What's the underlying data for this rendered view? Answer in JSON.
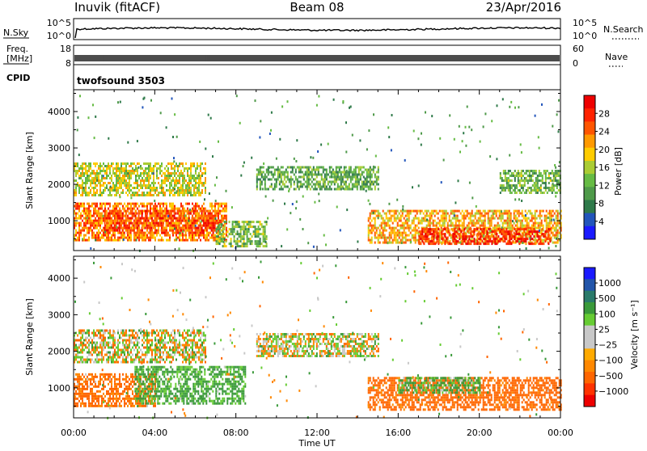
{
  "header": {
    "station": "Inuvik (fitACF)",
    "beam": "Beam 08",
    "date": "23/Apr/2016"
  },
  "noise_panel": {
    "left_label": "N.Sky",
    "right_label": "N.Search",
    "left_ticks": [
      "10^5",
      "10^0"
    ],
    "right_ticks": [
      "10^5",
      "10^0"
    ]
  },
  "freq_panel": {
    "left_label_line1": "Freq.",
    "left_label_line2": "[MHz]",
    "right_label": "Nave",
    "left_ticks": [
      "18",
      "8"
    ],
    "right_ticks": [
      "60",
      "0"
    ]
  },
  "cpid": {
    "label": "CPID",
    "value": "twofsound 3503"
  },
  "colors": {
    "power_scale": [
      "#1a1aff",
      "#2255bb",
      "#2f7a4a",
      "#4f9a4a",
      "#66bb44",
      "#aacc33",
      "#ffcc00",
      "#ff9900",
      "#ff5500",
      "#ff2200",
      "#ee0000"
    ],
    "velocity_scale": [
      "#ee0000",
      "#ff3300",
      "#ff6600",
      "#ff8800",
      "#ffaa00",
      "#c8c8c8",
      "#c8c8c8",
      "#66cc33",
      "#3a9a3a",
      "#2a7a6a",
      "#2255aa",
      "#1a1aff"
    ]
  },
  "chart_data": [
    {
      "type": "heatmap",
      "title": "",
      "xlabel": "",
      "ylabel": "Slant Range [km]",
      "xlim": [
        "00:00",
        "24:00"
      ],
      "ylim": [
        180,
        4600
      ],
      "y_ticks": [
        "1000",
        "2000",
        "3000",
        "4000"
      ],
      "colorbar": {
        "label": "Power [dB]",
        "range": [
          0,
          32
        ],
        "tick_labels": [
          "4",
          "8",
          "12",
          "16",
          "20",
          "24",
          "28"
        ]
      },
      "echo_regions": [
        {
          "t_start": 0.0,
          "t_end": 6.5,
          "r_min": 1700,
          "r_max": 2600,
          "level": 17
        },
        {
          "t_start": 0.0,
          "t_end": 7.5,
          "r_min": 500,
          "r_max": 1500,
          "level": 24
        },
        {
          "t_start": 1.5,
          "t_end": 7.0,
          "r_min": 700,
          "r_max": 1300,
          "level": 27
        },
        {
          "t_start": 7.0,
          "t_end": 9.5,
          "r_min": 300,
          "r_max": 1000,
          "level": 13
        },
        {
          "t_start": 9.0,
          "t_end": 15.0,
          "r_min": 1900,
          "r_max": 2500,
          "level": 11
        },
        {
          "t_start": 14.5,
          "t_end": 24.0,
          "r_min": 400,
          "r_max": 1300,
          "level": 21
        },
        {
          "t_start": 17.0,
          "t_end": 23.5,
          "r_min": 400,
          "r_max": 800,
          "level": 29
        },
        {
          "t_start": 21.0,
          "t_end": 24.0,
          "r_min": 1800,
          "r_max": 2400,
          "level": 12
        }
      ]
    },
    {
      "type": "heatmap",
      "title": "",
      "xlabel": "Time UT",
      "ylabel": "Slant Range [km]",
      "xlim": [
        "00:00",
        "24:00"
      ],
      "ylim": [
        180,
        4600
      ],
      "y_ticks": [
        "1000",
        "2000",
        "3000",
        "4000"
      ],
      "x_ticks": [
        "00:00",
        "04:00",
        "08:00",
        "12:00",
        "16:00",
        "20:00",
        "00:00"
      ],
      "colorbar": {
        "label": "Velocity [m s⁻¹]",
        "tick_labels": [
          "1000",
          "500",
          "100",
          "25",
          "−25",
          "−100",
          "−500",
          "−1000"
        ]
      },
      "echo_regions": [
        {
          "t_start": 0.0,
          "t_end": 6.5,
          "r_min": 1700,
          "r_max": 2600,
          "v": 0
        },
        {
          "t_start": 0.0,
          "t_end": 4.0,
          "r_min": 500,
          "r_max": 1400,
          "v": -150
        },
        {
          "t_start": 3.0,
          "t_end": 8.5,
          "r_min": 600,
          "r_max": 1600,
          "v": 150
        },
        {
          "t_start": 9.0,
          "t_end": 15.0,
          "r_min": 1900,
          "r_max": 2500,
          "v": 0
        },
        {
          "t_start": 14.5,
          "t_end": 24.0,
          "r_min": 400,
          "r_max": 1300,
          "v": -200
        },
        {
          "t_start": 16.0,
          "t_end": 20.0,
          "r_min": 900,
          "r_max": 1300,
          "v": 120
        }
      ]
    }
  ]
}
